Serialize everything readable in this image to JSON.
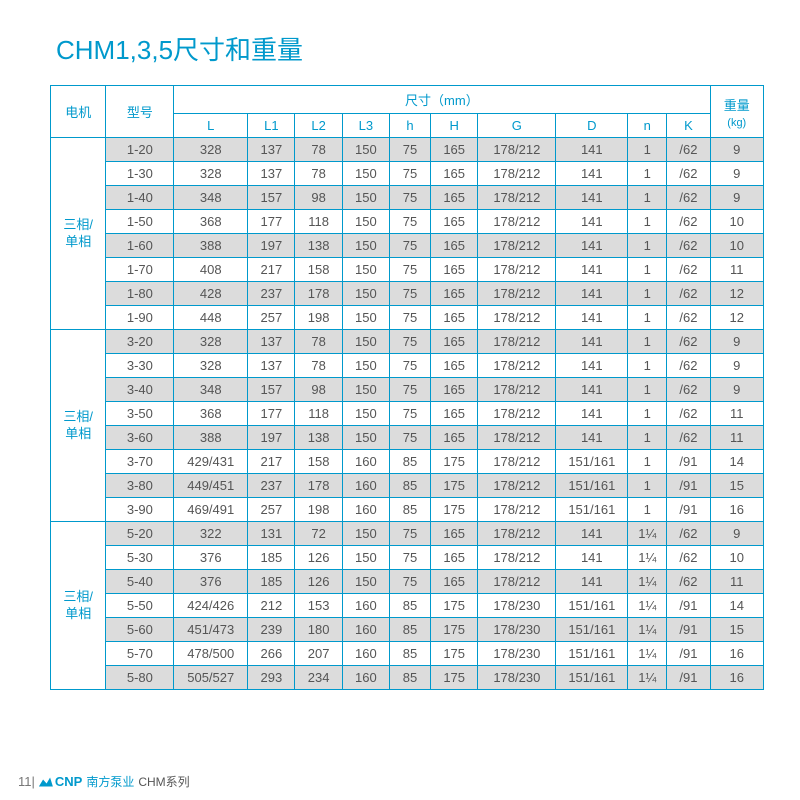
{
  "title": "CHM1,3,5尺寸和重量",
  "headers": {
    "motor": "电机",
    "model": "型号",
    "dim_group": "尺寸（mm）",
    "weight": "重量",
    "weight_unit": "(kg)",
    "cols": [
      "L",
      "L1",
      "L2",
      "L3",
      "h",
      "H",
      "G",
      "D",
      "n",
      "K"
    ]
  },
  "col_widths": {
    "motor": 54,
    "model": 66,
    "L": 72,
    "L1": 46,
    "L2": 46,
    "L3": 46,
    "h": 40,
    "H": 46,
    "G": 76,
    "D": 70,
    "n": 38,
    "K": 42,
    "weight": 52
  },
  "groups": [
    {
      "motor": "三相/\n单相",
      "rows": [
        {
          "m": "1-20",
          "L": "328",
          "L1": "137",
          "L2": "78",
          "L3": "150",
          "h": "75",
          "H": "165",
          "G": "178/212",
          "D": "141",
          "n": "1",
          "K": "/62",
          "w": "9"
        },
        {
          "m": "1-30",
          "L": "328",
          "L1": "137",
          "L2": "78",
          "L3": "150",
          "h": "75",
          "H": "165",
          "G": "178/212",
          "D": "141",
          "n": "1",
          "K": "/62",
          "w": "9"
        },
        {
          "m": "1-40",
          "L": "348",
          "L1": "157",
          "L2": "98",
          "L3": "150",
          "h": "75",
          "H": "165",
          "G": "178/212",
          "D": "141",
          "n": "1",
          "K": "/62",
          "w": "9"
        },
        {
          "m": "1-50",
          "L": "368",
          "L1": "177",
          "L2": "118",
          "L3": "150",
          "h": "75",
          "H": "165",
          "G": "178/212",
          "D": "141",
          "n": "1",
          "K": "/62",
          "w": "10"
        },
        {
          "m": "1-60",
          "L": "388",
          "L1": "197",
          "L2": "138",
          "L3": "150",
          "h": "75",
          "H": "165",
          "G": "178/212",
          "D": "141",
          "n": "1",
          "K": "/62",
          "w": "10"
        },
        {
          "m": "1-70",
          "L": "408",
          "L1": "217",
          "L2": "158",
          "L3": "150",
          "h": "75",
          "H": "165",
          "G": "178/212",
          "D": "141",
          "n": "1",
          "K": "/62",
          "w": "11"
        },
        {
          "m": "1-80",
          "L": "428",
          "L1": "237",
          "L2": "178",
          "L3": "150",
          "h": "75",
          "H": "165",
          "G": "178/212",
          "D": "141",
          "n": "1",
          "K": "/62",
          "w": "12"
        },
        {
          "m": "1-90",
          "L": "448",
          "L1": "257",
          "L2": "198",
          "L3": "150",
          "h": "75",
          "H": "165",
          "G": "178/212",
          "D": "141",
          "n": "1",
          "K": "/62",
          "w": "12"
        }
      ]
    },
    {
      "motor": "三相/\n单相",
      "rows": [
        {
          "m": "3-20",
          "L": "328",
          "L1": "137",
          "L2": "78",
          "L3": "150",
          "h": "75",
          "H": "165",
          "G": "178/212",
          "D": "141",
          "n": "1",
          "K": "/62",
          "w": "9"
        },
        {
          "m": "3-30",
          "L": "328",
          "L1": "137",
          "L2": "78",
          "L3": "150",
          "h": "75",
          "H": "165",
          "G": "178/212",
          "D": "141",
          "n": "1",
          "K": "/62",
          "w": "9"
        },
        {
          "m": "3-40",
          "L": "348",
          "L1": "157",
          "L2": "98",
          "L3": "150",
          "h": "75",
          "H": "165",
          "G": "178/212",
          "D": "141",
          "n": "1",
          "K": "/62",
          "w": "9"
        },
        {
          "m": "3-50",
          "L": "368",
          "L1": "177",
          "L2": "118",
          "L3": "150",
          "h": "75",
          "H": "165",
          "G": "178/212",
          "D": "141",
          "n": "1",
          "K": "/62",
          "w": "11"
        },
        {
          "m": "3-60",
          "L": "388",
          "L1": "197",
          "L2": "138",
          "L3": "150",
          "h": "75",
          "H": "165",
          "G": "178/212",
          "D": "141",
          "n": "1",
          "K": "/62",
          "w": "11"
        },
        {
          "m": "3-70",
          "L": "429/431",
          "L1": "217",
          "L2": "158",
          "L3": "160",
          "h": "85",
          "H": "175",
          "G": "178/212",
          "D": "151/161",
          "n": "1",
          "K": "/91",
          "w": "14"
        },
        {
          "m": "3-80",
          "L": "449/451",
          "L1": "237",
          "L2": "178",
          "L3": "160",
          "h": "85",
          "H": "175",
          "G": "178/212",
          "D": "151/161",
          "n": "1",
          "K": "/91",
          "w": "15"
        },
        {
          "m": "3-90",
          "L": "469/491",
          "L1": "257",
          "L2": "198",
          "L3": "160",
          "h": "85",
          "H": "175",
          "G": "178/212",
          "D": "151/161",
          "n": "1",
          "K": "/91",
          "w": "16"
        }
      ]
    },
    {
      "motor": "三相/\n单相",
      "rows": [
        {
          "m": "5-20",
          "L": "322",
          "L1": "131",
          "L2": "72",
          "L3": "150",
          "h": "75",
          "H": "165",
          "G": "178/212",
          "D": "141",
          "n": "1¼",
          "K": "/62",
          "w": "9"
        },
        {
          "m": "5-30",
          "L": "376",
          "L1": "185",
          "L2": "126",
          "L3": "150",
          "h": "75",
          "H": "165",
          "G": "178/212",
          "D": "141",
          "n": "1¼",
          "K": "/62",
          "w": "10"
        },
        {
          "m": "5-40",
          "L": "376",
          "L1": "185",
          "L2": "126",
          "L3": "150",
          "h": "75",
          "H": "165",
          "G": "178/212",
          "D": "141",
          "n": "1¼",
          "K": "/62",
          "w": "11"
        },
        {
          "m": "5-50",
          "L": "424/426",
          "L1": "212",
          "L2": "153",
          "L3": "160",
          "h": "85",
          "H": "175",
          "G": "178/230",
          "D": "151/161",
          "n": "1¼",
          "K": "/91",
          "w": "14"
        },
        {
          "m": "5-60",
          "L": "451/473",
          "L1": "239",
          "L2": "180",
          "L3": "160",
          "h": "85",
          "H": "175",
          "G": "178/230",
          "D": "151/161",
          "n": "1¼",
          "K": "/91",
          "w": "15"
        },
        {
          "m": "5-70",
          "L": "478/500",
          "L1": "266",
          "L2": "207",
          "L3": "160",
          "h": "85",
          "H": "175",
          "G": "178/230",
          "D": "151/161",
          "n": "1¼",
          "K": "/91",
          "w": "16"
        },
        {
          "m": "5-80",
          "L": "505/527",
          "L1": "293",
          "L2": "234",
          "L3": "160",
          "h": "85",
          "H": "175",
          "G": "178/230",
          "D": "151/161",
          "n": "1¼",
          "K": "/91",
          "w": "16"
        }
      ]
    }
  ],
  "footer": {
    "page": "11|",
    "brand_letter": "ᑭ",
    "brand": "CNP",
    "brand_cn": "南方泵业",
    "series": "CHM系列"
  }
}
